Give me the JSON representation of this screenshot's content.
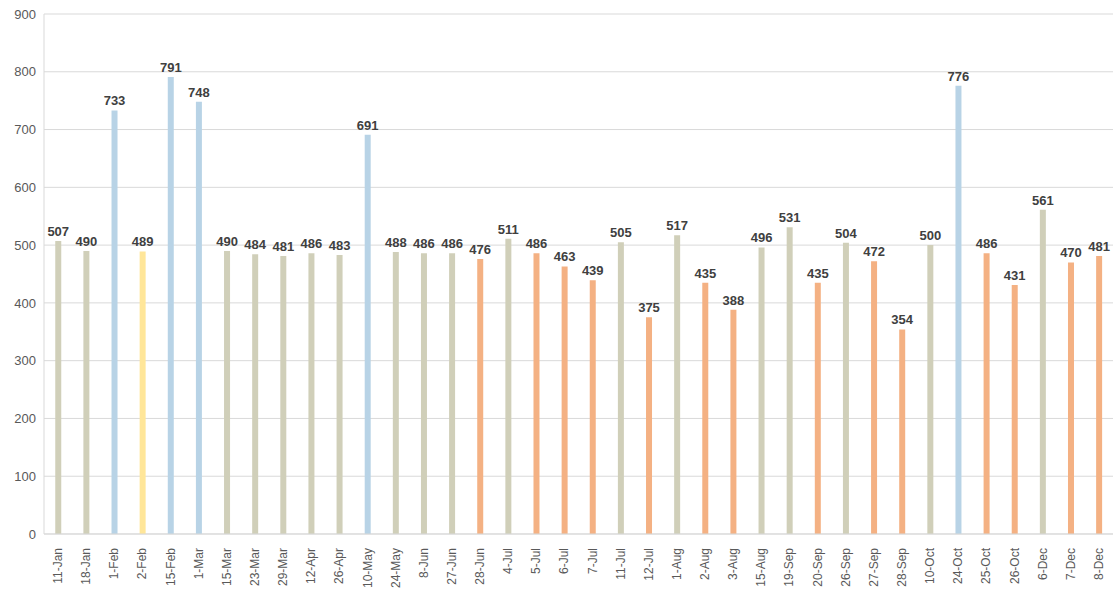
{
  "chart_data": {
    "type": "bar",
    "categories": [
      "11-Jan",
      "18-Jan",
      "1-Feb",
      "2-Feb",
      "15-Feb",
      "1-Mar",
      "15-Mar",
      "23-Mar",
      "29-Mar",
      "12-Apr",
      "26-Apr",
      "10-May",
      "24-May",
      "8-Jun",
      "27-Jun",
      "28-Jun",
      "4-Jul",
      "5-Jul",
      "6-Jul",
      "7-Jul",
      "11-Jul",
      "12-Jul",
      "1-Aug",
      "2-Aug",
      "3-Aug",
      "15-Aug",
      "19-Sep",
      "20-Sep",
      "26-Sep",
      "27-Sep",
      "28-Sep",
      "10-Oct",
      "24-Oct",
      "25-Oct",
      "26-Oct",
      "6-Dec",
      "7-Dec",
      "8-Dec"
    ],
    "values": [
      507,
      490,
      733,
      489,
      791,
      748,
      490,
      484,
      481,
      486,
      483,
      691,
      488,
      486,
      486,
      476,
      511,
      486,
      463,
      439,
      505,
      375,
      517,
      435,
      388,
      496,
      531,
      435,
      504,
      472,
      354,
      500,
      776,
      486,
      431,
      561,
      470,
      481
    ],
    "colors": [
      "#d0cfb9",
      "#d0cfb9",
      "#b8d3e6",
      "#ffe699",
      "#b8d3e6",
      "#b8d3e6",
      "#d0cfb9",
      "#d0cfb9",
      "#d0cfb9",
      "#d0cfb9",
      "#d0cfb9",
      "#b8d3e6",
      "#d0cfb9",
      "#d0cfb9",
      "#d0cfb9",
      "#f4b183",
      "#d0cfb9",
      "#f4b183",
      "#f4b183",
      "#f4b183",
      "#d0cfb9",
      "#f4b183",
      "#d0cfb9",
      "#f4b183",
      "#f4b183",
      "#d0cfb9",
      "#d0cfb9",
      "#f4b183",
      "#d0cfb9",
      "#f4b183",
      "#f4b183",
      "#d0cfb9",
      "#b8d3e6",
      "#f4b183",
      "#f4b183",
      "#d0cfb9",
      "#f4b183",
      "#f4b183"
    ],
    "ylim": [
      0,
      900
    ],
    "yticks": [
      0,
      100,
      200,
      300,
      400,
      500,
      600,
      700,
      800,
      900
    ],
    "grid": true,
    "data_labels": true
  }
}
